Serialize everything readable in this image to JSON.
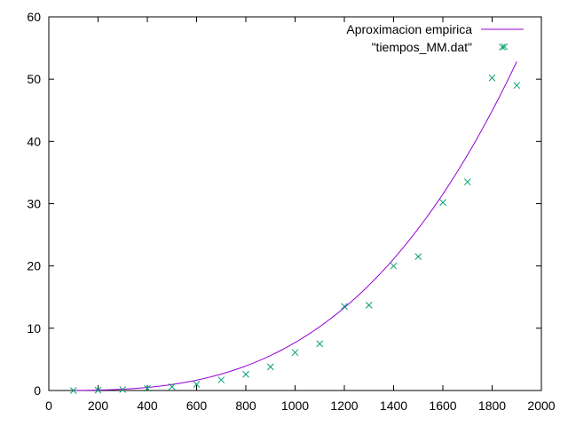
{
  "chart_data": {
    "type": "scatter",
    "title": "",
    "xlabel": "",
    "ylabel": "",
    "xlim": [
      0,
      2000
    ],
    "ylim": [
      0,
      60
    ],
    "x_ticks": [
      0,
      200,
      400,
      600,
      800,
      1000,
      1200,
      1400,
      1600,
      1800,
      2000
    ],
    "y_ticks": [
      0,
      10,
      20,
      30,
      40,
      50,
      60
    ],
    "grid": false,
    "legend_position": "top-right",
    "series": [
      {
        "name": "Aproximacion empirica",
        "type": "line",
        "color": "#9400d3",
        "model": "cubic",
        "coefficient": 7.7e-09,
        "exponent": 3,
        "x_range": [
          100,
          1900
        ]
      },
      {
        "name": "\"tiempos_MM.dat\"",
        "type": "scatter",
        "marker": "x",
        "color": "#009e73",
        "x": [
          100,
          200,
          300,
          400,
          500,
          600,
          700,
          800,
          900,
          1000,
          1100,
          1200,
          1300,
          1400,
          1500,
          1600,
          1700,
          1800,
          1850,
          1900
        ],
        "y": [
          0.0,
          0.05,
          0.15,
          0.35,
          0.6,
          1.0,
          1.7,
          2.6,
          3.8,
          6.1,
          7.5,
          13.5,
          13.7,
          20.0,
          21.5,
          30.2,
          33.5,
          50.2,
          55.2,
          49.0
        ]
      }
    ]
  }
}
